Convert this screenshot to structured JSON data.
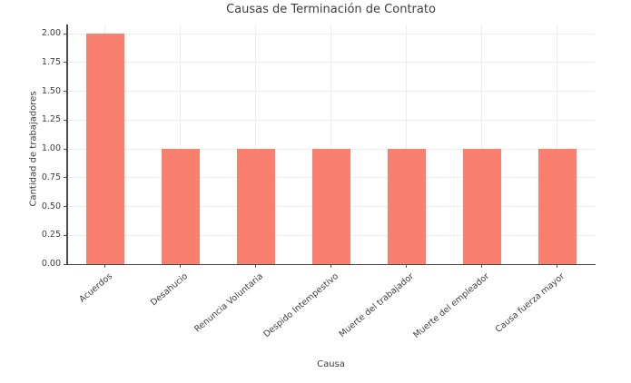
{
  "figure": {
    "background": "#ffffff"
  },
  "chart_data": {
    "type": "bar",
    "title": "Causas de Terminación de Contrato",
    "xlabel": "Causa",
    "ylabel": "Cantidad de trabajadores",
    "categories": [
      "Acuerdos",
      "Desahucio",
      "Renuncia Voluntaria",
      "Despido Intempestivo",
      "Muerte del trabajador",
      "Muerte del empleador",
      "Causa fuerza mayor"
    ],
    "values": [
      2,
      1,
      1,
      1,
      1,
      1,
      1
    ],
    "ylim": [
      0,
      2.0
    ],
    "yticks": [
      0,
      0.25,
      0.5,
      0.75,
      1.0,
      1.25,
      1.5,
      1.75,
      2.0
    ],
    "ytick_labels": [
      "0.00",
      "0.25",
      "0.50",
      "0.75",
      "1.00",
      "1.25",
      "1.50",
      "1.75",
      "2.00"
    ],
    "bar_color": "#f9806f",
    "bar_width_fraction": 0.5,
    "grid": true,
    "gridline_color": "#ececec",
    "axis_color": "#4a4a4a",
    "tick_color": "#555555",
    "text_color": "#3d3d3d",
    "legend": null,
    "x_tick_rotation_deg": 40
  }
}
